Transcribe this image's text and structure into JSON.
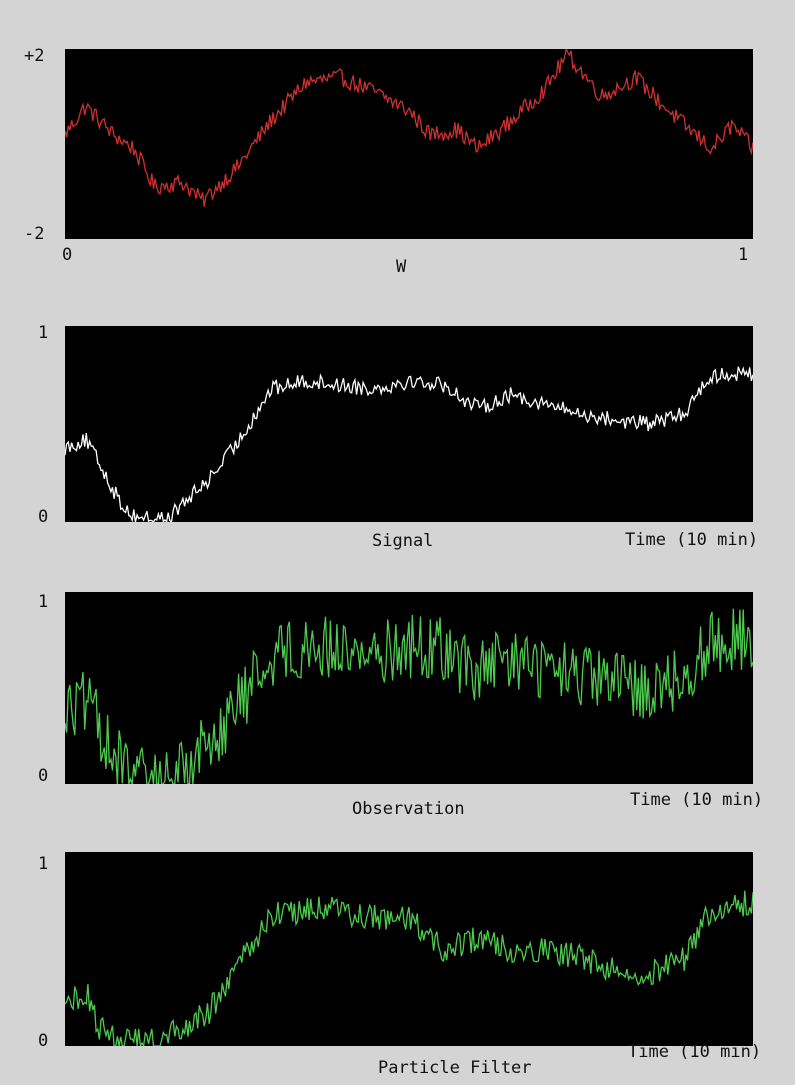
{
  "charts": {
    "w": {
      "ylabel_top": "+2",
      "ylabel_bottom": "-2",
      "xlabel_left": "0",
      "xlabel_right": "1",
      "title": "W"
    },
    "signal": {
      "ylabel_top": "1",
      "ylabel_bottom": "0",
      "title": "Signal",
      "axis_label": "Time (10 min)"
    },
    "observation": {
      "ylabel_top": "1",
      "ylabel_bottom": "0",
      "title": "Observation",
      "axis_label": "Time (10 min)"
    },
    "filter": {
      "ylabel_top": "1",
      "ylabel_bottom": "0",
      "title": "Particle Filter",
      "axis_label": "Time (10 min)"
    }
  },
  "chart_data": [
    {
      "type": "line",
      "title": "W",
      "xlim": [
        0,
        1
      ],
      "ylim": [
        -2,
        2
      ],
      "color": "#d03030",
      "noise": 0.18,
      "x": [
        0,
        0.03,
        0.07,
        0.1,
        0.13,
        0.17,
        0.2,
        0.25,
        0.3,
        0.35,
        0.4,
        0.45,
        0.5,
        0.53,
        0.57,
        0.6,
        0.65,
        0.7,
        0.73,
        0.78,
        0.83,
        0.87,
        0.9,
        0.94,
        0.97,
        1
      ],
      "y": [
        0.2,
        0.8,
        0.2,
        -0.1,
        -0.9,
        -0.8,
        -1.2,
        -0.5,
        0.5,
        1.3,
        1.4,
        1.1,
        0.7,
        0.2,
        0.3,
        -0.1,
        0.5,
        1.2,
        1.9,
        1.0,
        1.4,
        0.8,
        0.4,
        -0.1,
        0.4,
        -0.1
      ]
    },
    {
      "type": "line",
      "title": "Signal",
      "xlabel": "Time (10 min)",
      "ylim": [
        0,
        1
      ],
      "color": "#ffffff",
      "noise": 0.04,
      "x": [
        0,
        0.03,
        0.05,
        0.08,
        0.1,
        0.13,
        0.15,
        0.18,
        0.21,
        0.25,
        0.3,
        0.35,
        0.4,
        0.45,
        0.5,
        0.55,
        0.6,
        0.65,
        0.7,
        0.75,
        0.8,
        0.85,
        0.9,
        0.93,
        0.96,
        1
      ],
      "y": [
        0.38,
        0.42,
        0.3,
        0.1,
        0.03,
        0.02,
        0.02,
        0.12,
        0.22,
        0.4,
        0.68,
        0.72,
        0.7,
        0.68,
        0.72,
        0.7,
        0.58,
        0.65,
        0.6,
        0.55,
        0.52,
        0.5,
        0.55,
        0.72,
        0.76,
        0.75
      ]
    },
    {
      "type": "line",
      "title": "Observation",
      "xlabel": "Time (10 min)",
      "ylim": [
        0,
        1
      ],
      "color": "#4ecb4e",
      "noise": 0.17,
      "x": [
        0,
        0.03,
        0.05,
        0.08,
        0.1,
        0.13,
        0.15,
        0.18,
        0.21,
        0.25,
        0.3,
        0.35,
        0.4,
        0.45,
        0.5,
        0.55,
        0.6,
        0.65,
        0.7,
        0.75,
        0.8,
        0.85,
        0.9,
        0.93,
        0.96,
        1
      ],
      "y": [
        0.38,
        0.42,
        0.3,
        0.1,
        0.03,
        0.02,
        0.02,
        0.12,
        0.22,
        0.4,
        0.68,
        0.72,
        0.7,
        0.68,
        0.72,
        0.7,
        0.58,
        0.65,
        0.6,
        0.55,
        0.52,
        0.5,
        0.55,
        0.72,
        0.76,
        0.75
      ]
    },
    {
      "type": "line",
      "title": "Particle Filter",
      "xlabel": "Time (10 min)",
      "ylim": [
        0,
        1
      ],
      "color": "#4ecb4e",
      "noise": 0.07,
      "x": [
        0,
        0.03,
        0.05,
        0.08,
        0.1,
        0.13,
        0.15,
        0.18,
        0.21,
        0.25,
        0.3,
        0.35,
        0.4,
        0.45,
        0.5,
        0.55,
        0.6,
        0.65,
        0.7,
        0.75,
        0.8,
        0.85,
        0.9,
        0.93,
        0.96,
        1
      ],
      "y": [
        0.2,
        0.28,
        0.1,
        0.03,
        0.02,
        0.02,
        0.05,
        0.12,
        0.18,
        0.4,
        0.68,
        0.7,
        0.7,
        0.66,
        0.65,
        0.5,
        0.55,
        0.5,
        0.5,
        0.45,
        0.4,
        0.38,
        0.45,
        0.66,
        0.7,
        0.75
      ]
    }
  ]
}
